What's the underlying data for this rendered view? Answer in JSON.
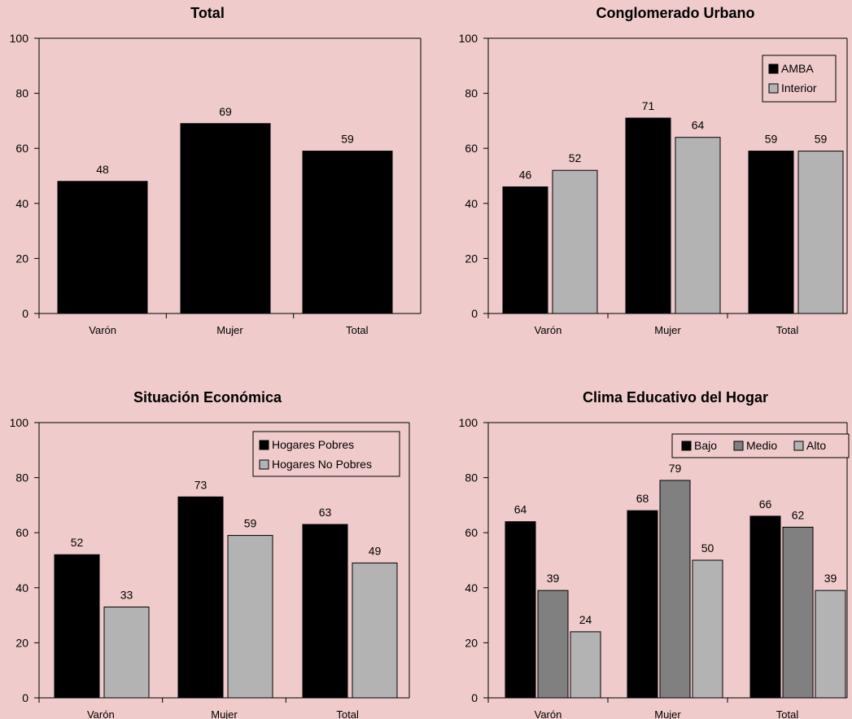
{
  "chart_data": [
    {
      "type": "bar",
      "title": "Total",
      "categories": [
        "Varón",
        "Mujer",
        "Total"
      ],
      "series": [
        {
          "values": [
            48,
            69,
            59
          ],
          "color": "#000000"
        }
      ],
      "ylim": [
        0,
        100
      ],
      "yticks": [
        0,
        20,
        40,
        60,
        80,
        100
      ],
      "legend": null,
      "grid": false
    },
    {
      "type": "bar",
      "title": "Conglomerado Urbano",
      "categories": [
        "Varón",
        "Mujer",
        "Total"
      ],
      "series": [
        {
          "name": "AMBA",
          "values": [
            46,
            71,
            59
          ],
          "color": "#000000"
        },
        {
          "name": "Interior",
          "values": [
            52,
            64,
            59
          ],
          "color": "#b3b3b3"
        }
      ],
      "ylim": [
        0,
        100
      ],
      "yticks": [
        0,
        20,
        40,
        60,
        80,
        100
      ],
      "legend": "top-right",
      "grid": false
    },
    {
      "type": "bar",
      "title": "Situación Económica",
      "categories": [
        "Varón",
        "Mujer",
        "Total"
      ],
      "series": [
        {
          "name": "Hogares Pobres",
          "values": [
            52,
            73,
            63
          ],
          "color": "#000000"
        },
        {
          "name": "Hogares No Pobres",
          "values": [
            33,
            59,
            49
          ],
          "color": "#b3b3b3"
        }
      ],
      "ylim": [
        0,
        100
      ],
      "yticks": [
        0,
        20,
        40,
        60,
        80,
        100
      ],
      "legend": "top-right",
      "grid": false
    },
    {
      "type": "bar",
      "title": "Clima Educativo del Hogar",
      "categories": [
        "Varón",
        "Mujer",
        "Total"
      ],
      "series": [
        {
          "name": "Bajo",
          "values": [
            64,
            68,
            66
          ],
          "color": "#000000"
        },
        {
          "name": "Medio",
          "values": [
            39,
            79,
            62
          ],
          "color": "#808080"
        },
        {
          "name": "Alto",
          "values": [
            24,
            50,
            39
          ],
          "color": "#b3b3b3"
        }
      ],
      "ylim": [
        0,
        100
      ],
      "yticks": [
        0,
        20,
        40,
        60,
        80,
        100
      ],
      "legend": "top-right",
      "grid": false
    }
  ]
}
